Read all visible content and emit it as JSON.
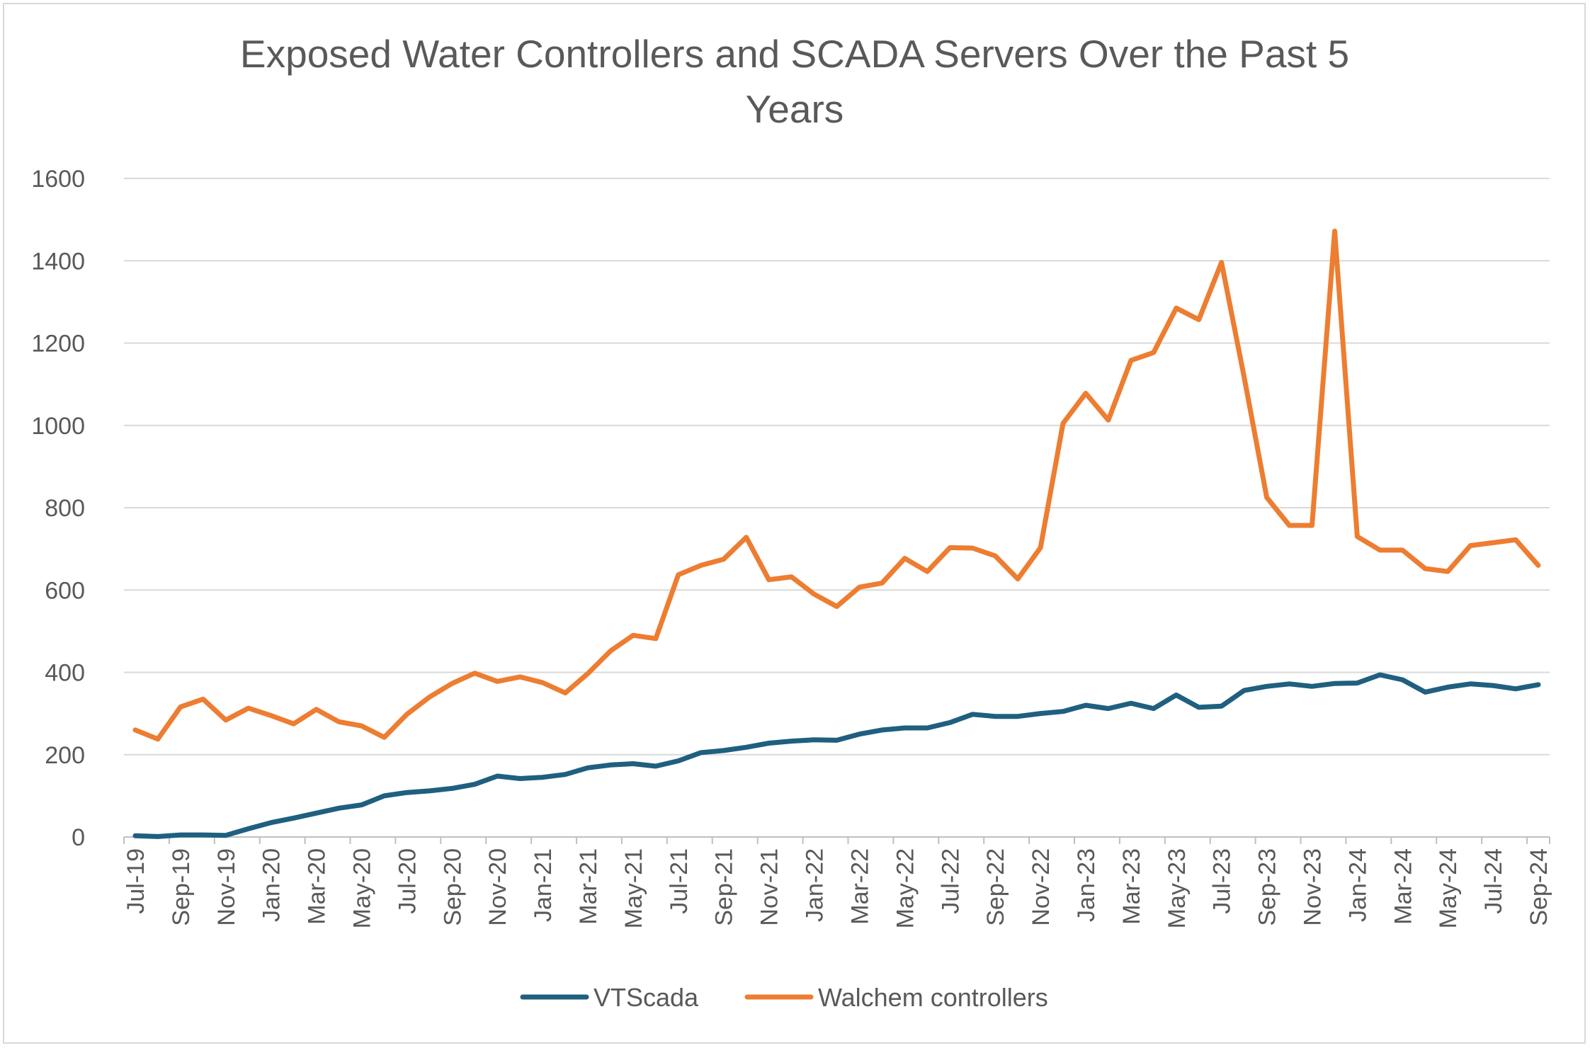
{
  "chart_data": {
    "type": "line",
    "title_lines": [
      "Exposed Water Controllers and SCADA Servers Over the Past 5",
      "Years"
    ],
    "xlabel": "",
    "ylabel": "",
    "ylim": [
      0,
      1600
    ],
    "yticks": [
      0,
      200,
      400,
      600,
      800,
      1000,
      1200,
      1400,
      1600
    ],
    "grid": true,
    "legend_position": "bottom",
    "x": [
      "Jul-19",
      "Aug-19",
      "Sep-19",
      "Oct-19",
      "Nov-19",
      "Dec-19",
      "Jan-20",
      "Feb-20",
      "Mar-20",
      "Apr-20",
      "May-20",
      "Jun-20",
      "Jul-20",
      "Aug-20",
      "Sep-20",
      "Oct-20",
      "Nov-20",
      "Dec-20",
      "Jan-21",
      "Feb-21",
      "Mar-21",
      "Apr-21",
      "May-21",
      "Jun-21",
      "Jul-21",
      "Aug-21",
      "Sep-21",
      "Oct-21",
      "Nov-21",
      "Dec-21",
      "Jan-22",
      "Feb-22",
      "Mar-22",
      "Apr-22",
      "May-22",
      "Jun-22",
      "Jul-22",
      "Aug-22",
      "Sep-22",
      "Oct-22",
      "Nov-22",
      "Dec-22",
      "Jan-23",
      "Feb-23",
      "Mar-23",
      "Apr-23",
      "May-23",
      "Jun-23",
      "Jul-23",
      "Aug-23",
      "Sep-23",
      "Oct-23",
      "Nov-23",
      "Dec-23",
      "Jan-24",
      "Feb-24",
      "Mar-24",
      "Apr-24",
      "May-24",
      "Jun-24",
      "Jul-24",
      "Aug-24",
      "Sep-24"
    ],
    "tick_labels": [
      "Jul-19",
      "Sep-19",
      "Nov-19",
      "Jan-20",
      "Mar-20",
      "May-20",
      "Jul-20",
      "Sep-20",
      "Nov-20",
      "Jan-21",
      "Mar-21",
      "May-21",
      "Jul-21",
      "Sep-21",
      "Nov-21",
      "Jan-22",
      "Mar-22",
      "May-22",
      "Jul-22",
      "Sep-22",
      "Nov-22",
      "Jan-23",
      "Mar-23",
      "May-23",
      "Jul-23",
      "Sep-23",
      "Nov-23",
      "Jan-24",
      "Mar-24",
      "May-24",
      "Jul-24",
      "Sep-24"
    ],
    "series": [
      {
        "name": "VTScada",
        "color": "#1f5f7f",
        "values": [
          3,
          1,
          5,
          5,
          4,
          20,
          35,
          46,
          58,
          70,
          78,
          100,
          108,
          112,
          118,
          128,
          148,
          142,
          145,
          152,
          168,
          175,
          178,
          172,
          185,
          205,
          210,
          218,
          228,
          233,
          236,
          235,
          250,
          260,
          265,
          265,
          278,
          298,
          293,
          293,
          300,
          305,
          320,
          312,
          325,
          312,
          345,
          315,
          318,
          356,
          366,
          372,
          366,
          373,
          374,
          394,
          382,
          352,
          364,
          372,
          368,
          360,
          370
        ]
      },
      {
        "name": "Walchem controllers",
        "color": "#ed7d31",
        "values": [
          260,
          238,
          316,
          335,
          284,
          313,
          295,
          275,
          310,
          280,
          270,
          242,
          298,
          340,
          373,
          398,
          378,
          389,
          375,
          350,
          397,
          452,
          490,
          482,
          637,
          660,
          675,
          728,
          625,
          632,
          590,
          560,
          607,
          617,
          677,
          645,
          703,
          702,
          683,
          627,
          703,
          1005,
          1078,
          1013,
          1158,
          1177,
          1285,
          1257,
          1396,
          1118,
          825,
          757,
          757,
          1472,
          730,
          697,
          697,
          652,
          645,
          708,
          715,
          722,
          660
        ]
      }
    ]
  }
}
